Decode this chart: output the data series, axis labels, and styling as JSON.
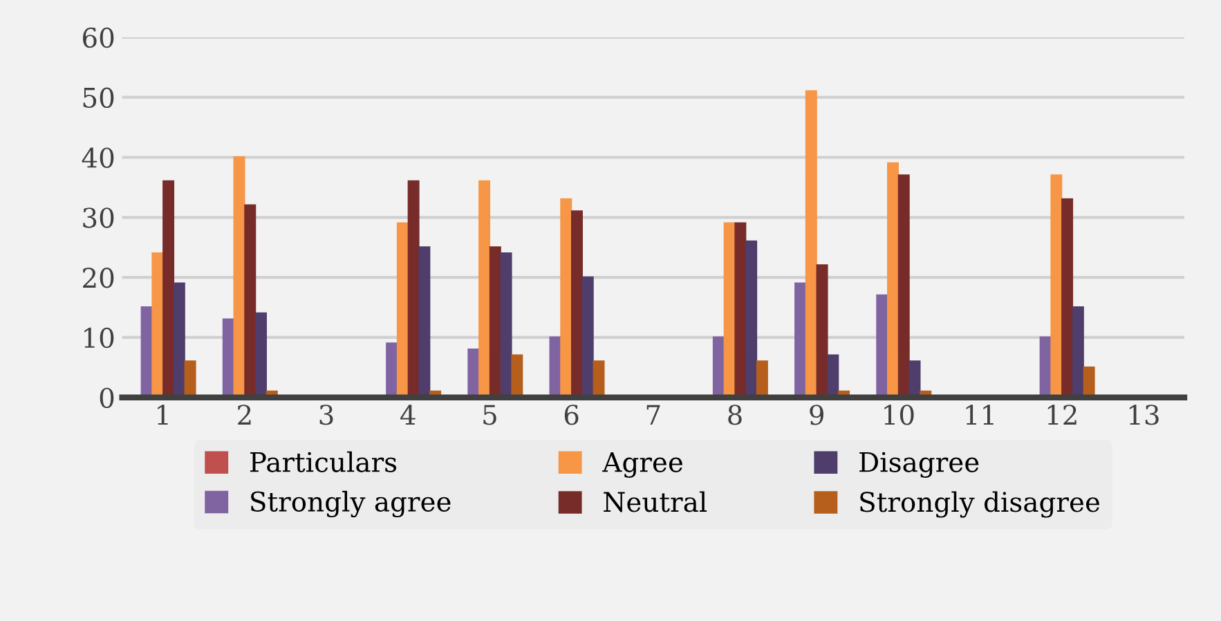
{
  "chart_data": {
    "type": "bar",
    "categories": [
      "1",
      "2",
      "3",
      "4",
      "5",
      "6",
      "7",
      "8",
      "9",
      "10",
      "11",
      "12",
      "13"
    ],
    "ylim": [
      0,
      60
    ],
    "yticks": [
      0,
      10,
      20,
      30,
      40,
      50,
      60
    ],
    "grid": "y",
    "legend": "bottom",
    "series": [
      {
        "name": "Particulars",
        "color": "#c0504d",
        "values": [
          0,
          0,
          null,
          0,
          0,
          0,
          null,
          0,
          0,
          0,
          null,
          0,
          null
        ]
      },
      {
        "name": "Strongly agree",
        "color": "#8064a2",
        "values": [
          15,
          13,
          null,
          9,
          8,
          10,
          null,
          10,
          19,
          17,
          null,
          10,
          null
        ]
      },
      {
        "name": "Agree",
        "color": "#f79646",
        "values": [
          24,
          40,
          null,
          29,
          36,
          33,
          null,
          29,
          51,
          39,
          null,
          37,
          null
        ]
      },
      {
        "name": "Neutral",
        "color": "#772c2a",
        "values": [
          36,
          32,
          null,
          36,
          25,
          31,
          null,
          29,
          22,
          37,
          null,
          33,
          null
        ]
      },
      {
        "name": "Disagree",
        "color": "#4f3d6b",
        "values": [
          19,
          14,
          null,
          25,
          24,
          20,
          null,
          26,
          7,
          6,
          null,
          15,
          null
        ]
      },
      {
        "name": "Strongly disagree",
        "color": "#b65f1c",
        "values": [
          6,
          1,
          null,
          1,
          7,
          6,
          null,
          6,
          1,
          1,
          null,
          5,
          null
        ]
      }
    ]
  }
}
